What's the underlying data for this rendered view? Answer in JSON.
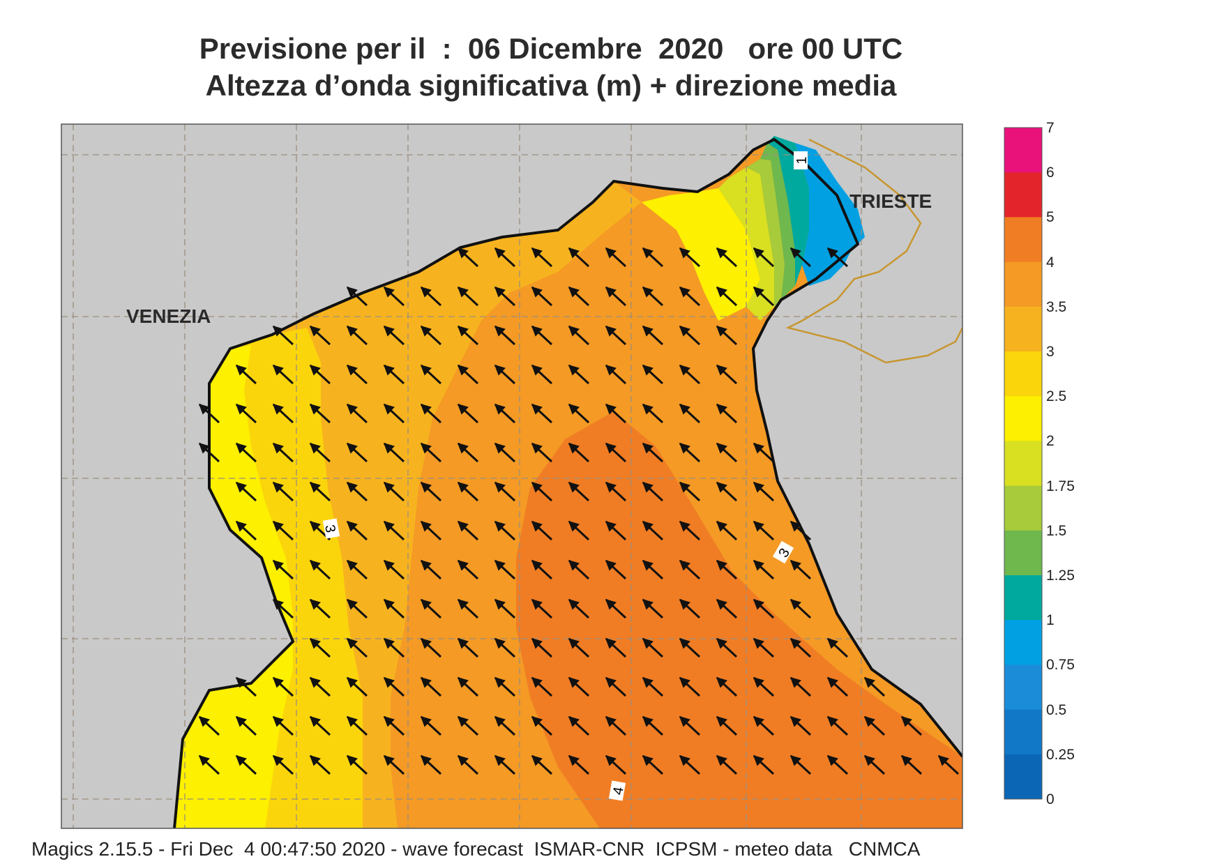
{
  "title": {
    "line1": "Previsione per il  :  06 Dicembre  2020   ore 00 UTC",
    "line2": "Altezza d’onda significativa (m) + direzione media"
  },
  "labels": {
    "cities": [
      "VENEZIA",
      "TRIESTE"
    ],
    "contours": [
      "3",
      "3",
      "4",
      "1"
    ]
  },
  "colorbar": {
    "ticks": [
      "7",
      "6",
      "5",
      "4",
      "3.5",
      "3",
      "2.5",
      "2",
      "1.75",
      "1.5",
      "1.25",
      "1",
      "0.75",
      "0.5",
      "0.25",
      "0"
    ],
    "colors": [
      "#e8127a",
      "#e3252b",
      "#f07d24",
      "#f49a25",
      "#f7b31f",
      "#fbd50b",
      "#fdf000",
      "#d8e021",
      "#a7cb3a",
      "#6fb84e",
      "#00a99d",
      "#00a0e3",
      "#1a8cd8",
      "#1178c7",
      "#0c66b6"
    ]
  },
  "map": {
    "colors": {
      "land": "#c9c9c9",
      "very_high": "#f07d24",
      "high": "#f49a25",
      "mid": "#f7b31f",
      "low_mid": "#fbd50b",
      "low": "#fdf000",
      "green_yellow": "#d8e021",
      "light_green": "#a7cb3a",
      "green": "#6fb84e",
      "teal": "#00a99d",
      "blue": "#00a0e3"
    },
    "wave_direction": "NW"
  },
  "footer": "Magics 2.15.5 - Fri Dec  4 00:47:50 2020 - wave forecast  ISMAR-CNR  ICPSM - meteo data   CNMCA"
}
